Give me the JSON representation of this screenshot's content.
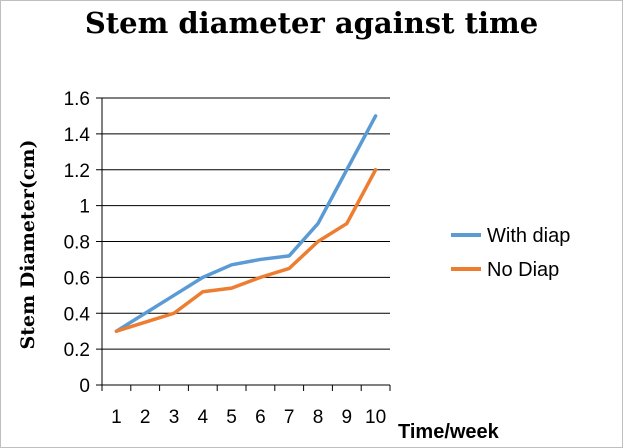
{
  "chart_data": {
    "type": "line",
    "title": "Stem diameter against time",
    "xlabel": "Time/week",
    "ylabel": "Stem Diameter(cm)",
    "x": [
      "1",
      "2",
      "3",
      "4",
      "5",
      "6",
      "7",
      "8",
      "9",
      "10"
    ],
    "yticks": [
      "0",
      "0.2",
      "0.4",
      "0.6",
      "0.8",
      "1",
      "1.2",
      "1.4",
      "1.6"
    ],
    "ylim": [
      0,
      1.6
    ],
    "grid": true,
    "legend_position": "right",
    "series": [
      {
        "name": "With diap",
        "color": "#5B9BD5",
        "values": [
          0.3,
          0.4,
          0.5,
          0.6,
          0.67,
          0.7,
          0.72,
          0.9,
          1.2,
          1.5
        ]
      },
      {
        "name": "No Diap",
        "color": "#ED7D31",
        "values": [
          0.3,
          0.35,
          0.4,
          0.52,
          0.54,
          0.6,
          0.65,
          0.8,
          0.9,
          1.2
        ]
      }
    ]
  }
}
